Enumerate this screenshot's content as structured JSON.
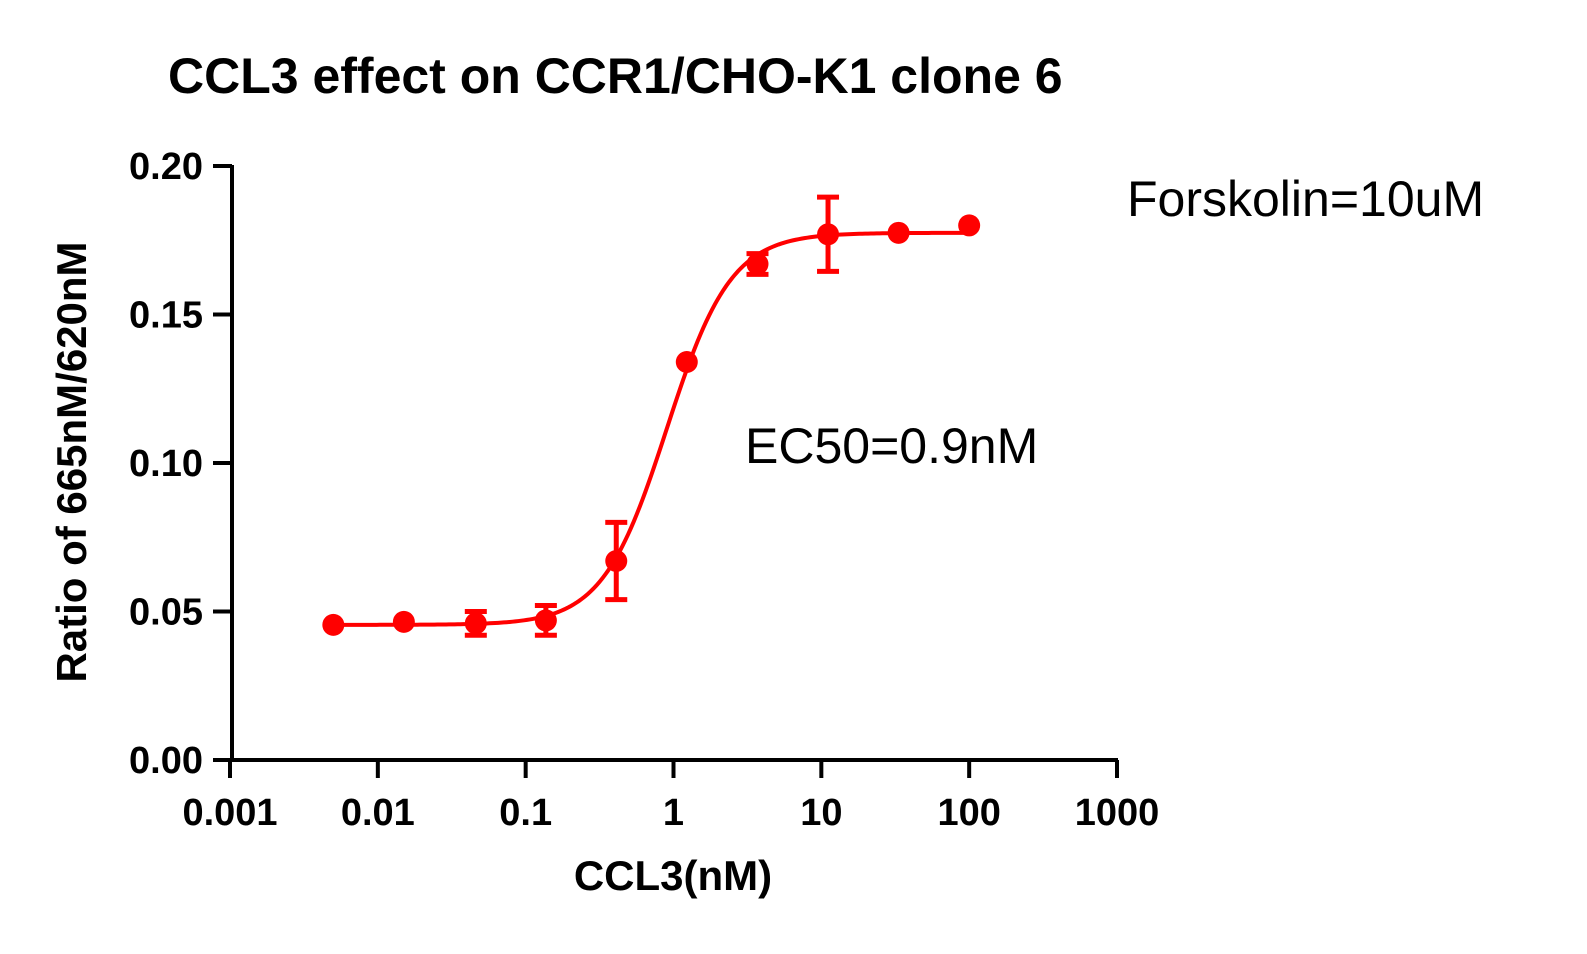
{
  "chart_data": {
    "type": "scatter",
    "title": "CCL3 effect on CCR1/CHO-K1 clone 6",
    "xlabel": "CCL3(nM)",
    "ylabel": "Ratio of 665nM/620nM",
    "x_scale": "log",
    "xlim": [
      0.001,
      1000
    ],
    "ylim": [
      0,
      0.2
    ],
    "x_ticks": [
      0.001,
      0.01,
      0.1,
      1,
      10,
      100,
      1000
    ],
    "x_tick_labels": [
      "0.001",
      "0.01",
      "0.1",
      "1",
      "10",
      "100",
      "1000"
    ],
    "y_ticks": [
      0,
      0.05,
      0.1,
      0.15,
      0.2
    ],
    "y_tick_labels": [
      "0.00",
      "0.05",
      "0.10",
      "0.15",
      "0.20"
    ],
    "grid": false,
    "series_color": "#ff0000",
    "series": [
      {
        "x": [
          0.005,
          0.015,
          0.046,
          0.137,
          0.41,
          1.23,
          3.7,
          11.1,
          33.3,
          100
        ],
        "y": [
          0.0455,
          0.0465,
          0.046,
          0.047,
          0.067,
          0.134,
          0.167,
          0.177,
          0.1775,
          0.18
        ],
        "err": [
          0.0005,
          0.0005,
          0.004,
          0.005,
          0.013,
          0.0005,
          0.0035,
          0.0125,
          0.0005,
          0.0005
        ]
      }
    ],
    "fit": {
      "bottom": 0.0455,
      "top": 0.1775,
      "ec50": 0.9,
      "hill": 2.0
    },
    "annotations": [
      {
        "text": "EC50=0.9nM"
      },
      {
        "text": "Forskolin=10uM"
      }
    ]
  }
}
